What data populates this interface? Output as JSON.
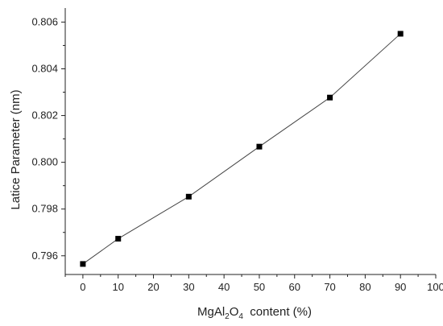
{
  "chart_data": {
    "type": "line",
    "title": "",
    "xlabel_main": "MgAl",
    "xlabel_sub1": "2",
    "xlabel_mid": "O",
    "xlabel_sub2": "4",
    "xlabel_tail": "  content (%)",
    "ylabel": "Latice Parameter (nm)",
    "xlim": [
      -5,
      100
    ],
    "ylim": [
      0.7952,
      0.8066
    ],
    "x_ticks": [
      0,
      10,
      20,
      30,
      40,
      50,
      60,
      70,
      80,
      90,
      100
    ],
    "x_tick_labels": [
      "0",
      "10",
      "20",
      "30",
      "40",
      "50",
      "60",
      "70",
      "80",
      "90",
      "100"
    ],
    "y_ticks": [
      0.796,
      0.798,
      0.8,
      0.802,
      0.804,
      0.806
    ],
    "y_tick_labels": [
      "0.796",
      "0.798",
      "0.800",
      "0.802",
      "0.804",
      "0.806"
    ],
    "grid": false,
    "series": [
      {
        "x": [
          0,
          10,
          30,
          50,
          70,
          90
        ],
        "y": [
          0.79565,
          0.79673,
          0.79853,
          0.80067,
          0.80277,
          0.8055
        ],
        "marker": "square",
        "color": "#000000"
      }
    ]
  }
}
